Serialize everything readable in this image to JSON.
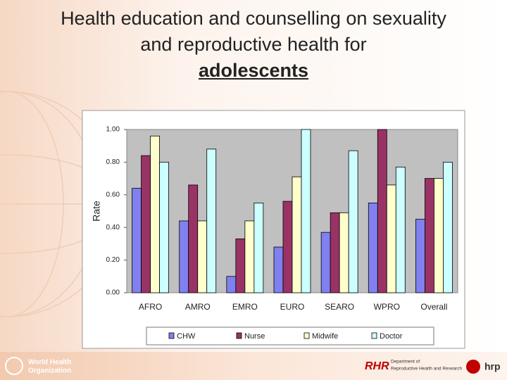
{
  "title": "Health education and counselling on sexuality and reproductive health for",
  "title_emphasis": "adolescents",
  "footer": {
    "left": [
      "World Health",
      "Organization"
    ],
    "right": [
      "Department of",
      "Reproductive Health and Research"
    ],
    "logo": "hrp"
  },
  "chart_data": {
    "type": "bar",
    "categories": [
      "AFRO",
      "AMRO",
      "EMRO",
      "EURO",
      "SEARO",
      "WPRO",
      "Overall"
    ],
    "series": [
      {
        "name": "CHW",
        "color": "#8080f0",
        "values": [
          0.64,
          0.44,
          0.1,
          0.28,
          0.37,
          0.55,
          0.45
        ]
      },
      {
        "name": "Nurse",
        "color": "#993366",
        "values": [
          0.84,
          0.66,
          0.33,
          0.56,
          0.49,
          1.0,
          0.7
        ]
      },
      {
        "name": "Midwife",
        "color": "#ffffcc",
        "values": [
          0.96,
          0.44,
          0.44,
          0.71,
          0.49,
          0.66,
          0.7
        ]
      },
      {
        "name": "Doctor",
        "color": "#ccffff",
        "values": [
          0.8,
          0.88,
          0.55,
          1.0,
          0.87,
          0.77,
          0.8
        ]
      }
    ],
    "y_label": "Rate",
    "ylim": [
      0,
      1
    ],
    "yticks": [
      {
        "value": 0,
        "label": "0.00"
      },
      {
        "value": 0.2,
        "label": "0.20"
      },
      {
        "value": 0.4,
        "label": "0.40"
      },
      {
        "value": 0.6,
        "label": "0.60"
      },
      {
        "value": 0.8,
        "label": "0.80"
      },
      {
        "value": 1,
        "label": "1.00"
      }
    ],
    "grid": false,
    "legend": "bottom"
  }
}
